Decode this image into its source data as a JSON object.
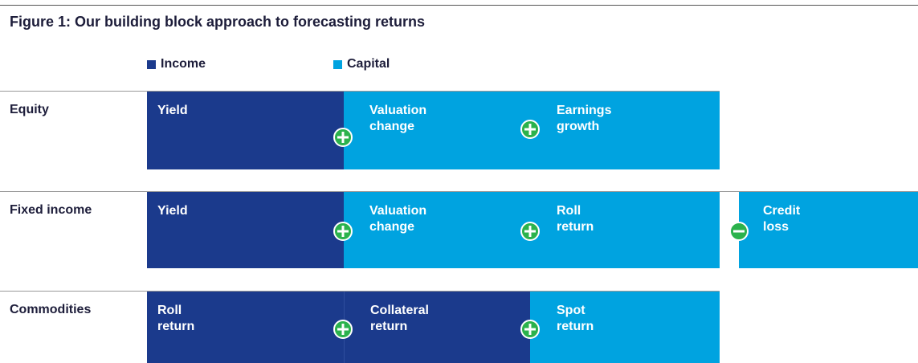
{
  "title": "Figure 1: Our building block approach to forecasting returns",
  "legend": [
    {
      "label": "Income",
      "color": "#1b3a8c"
    },
    {
      "label": "Capital",
      "color": "#00a3e0"
    }
  ],
  "rows": [
    {
      "label": "Equity",
      "blocks": [
        "Yield",
        "Valuation\nchange",
        "Earnings\ngrowth"
      ]
    },
    {
      "label": "Fixed income",
      "blocks": [
        "Yield",
        "Valuation\nchange",
        "Roll\nreturn",
        "Credit\nloss"
      ]
    },
    {
      "label": "Commodities",
      "blocks": [
        "Roll\nreturn",
        "Collateral\nreturn",
        "Spot\nreturn"
      ]
    }
  ]
}
